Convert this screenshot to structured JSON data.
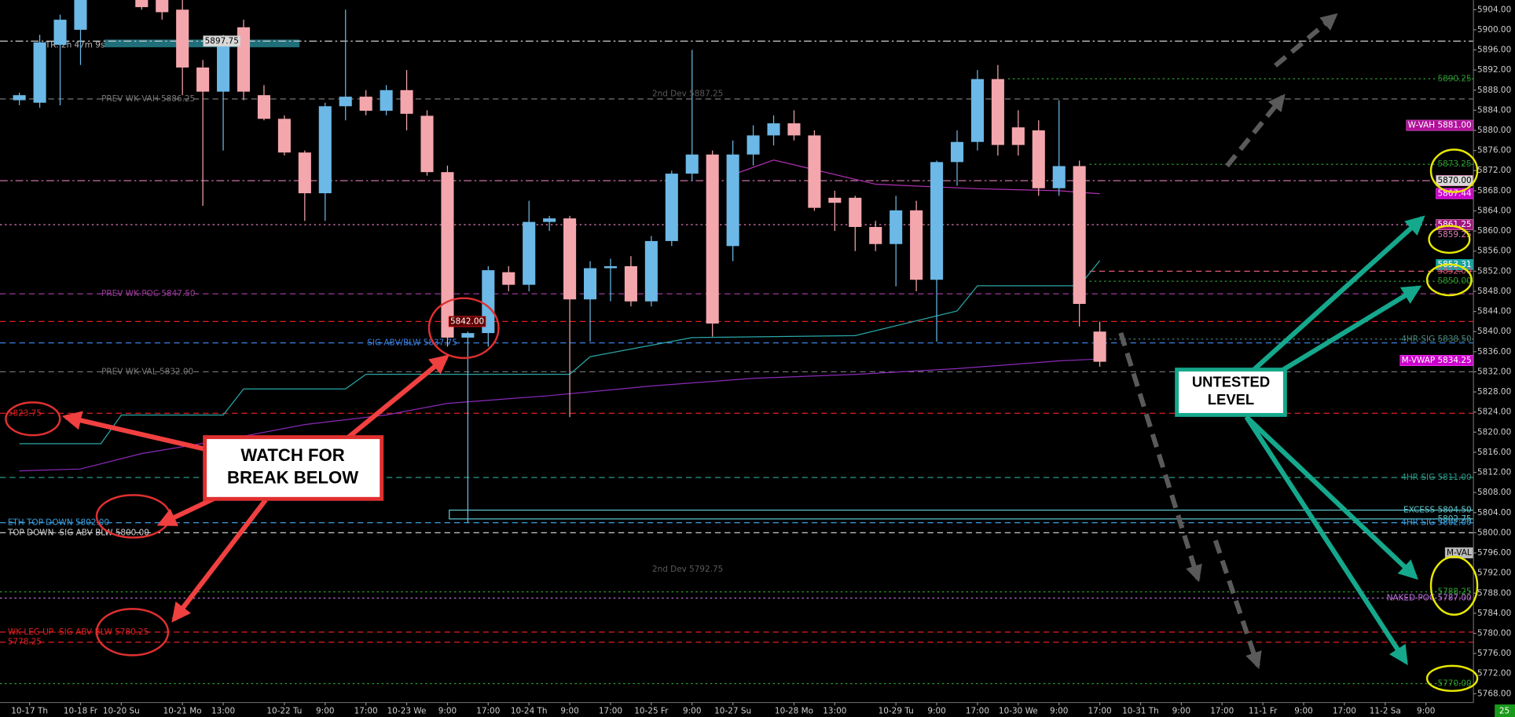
{
  "chart_data": {
    "type": "candlestick",
    "timer_label": "TR: 2h 47m 9s",
    "corner_label": "25",
    "up_color": "#6cb8e6",
    "down_color": "#f4a6ad",
    "xlim": [
      -0.95,
      71.33
    ],
    "ylim": [
      5766.25,
      5905.92
    ],
    "yticks": [
      {
        "value": 5768,
        "label": "5768.00"
      },
      {
        "value": 5772,
        "label": "5772.00"
      },
      {
        "value": 5776,
        "label": "5776.00"
      },
      {
        "value": 5780,
        "label": "5780.00"
      },
      {
        "value": 5784,
        "label": "5784.00"
      },
      {
        "value": 5788,
        "label": "5788.00"
      },
      {
        "value": 5792,
        "label": "5792.00"
      },
      {
        "value": 5796,
        "label": "5796.00"
      },
      {
        "value": 5800,
        "label": "5800.00"
      },
      {
        "value": 5804,
        "label": "5804.00"
      },
      {
        "value": 5808,
        "label": "5808.00"
      },
      {
        "value": 5812,
        "label": "5812.00"
      },
      {
        "value": 5816,
        "label": "5816.00"
      },
      {
        "value": 5820,
        "label": "5820.00"
      },
      {
        "value": 5824,
        "label": "5824.00"
      },
      {
        "value": 5828,
        "label": "5828.00"
      },
      {
        "value": 5832,
        "label": "5832.00"
      },
      {
        "value": 5836,
        "label": "5836.00"
      },
      {
        "value": 5840,
        "label": "5840.00"
      },
      {
        "value": 5844,
        "label": "5844.00"
      },
      {
        "value": 5848,
        "label": "5848.00"
      },
      {
        "value": 5852,
        "label": "5852.00"
      },
      {
        "value": 5856,
        "label": "5856.00"
      },
      {
        "value": 5860,
        "label": "5860.00"
      },
      {
        "value": 5864,
        "label": "5864.00"
      },
      {
        "value": 5868,
        "label": "5868.00"
      },
      {
        "value": 5872,
        "label": "5872.00"
      },
      {
        "value": 5876,
        "label": "5876.00"
      },
      {
        "value": 5880,
        "label": "5880.00"
      },
      {
        "value": 5884,
        "label": "5884.00"
      },
      {
        "value": 5888,
        "label": "5888.00"
      },
      {
        "value": 5892,
        "label": "5892.00"
      },
      {
        "value": 5896,
        "label": "5896.00"
      },
      {
        "value": 5900,
        "label": "5900.00"
      },
      {
        "value": 5904,
        "label": "5904.00"
      }
    ],
    "xticks": [
      {
        "value": 0.5,
        "label": "10-17 Th"
      },
      {
        "value": 3,
        "label": "10-18 Fr"
      },
      {
        "value": 5,
        "label": "10-20 Su"
      },
      {
        "value": 8,
        "label": "10-21 Mo"
      },
      {
        "value": 10,
        "label": "13:00"
      },
      {
        "value": 13,
        "label": "10-22 Tu"
      },
      {
        "value": 15,
        "label": "9:00"
      },
      {
        "value": 17,
        "label": "17:00"
      },
      {
        "value": 19,
        "label": "10-23 We"
      },
      {
        "value": 21,
        "label": "9:00"
      },
      {
        "value": 23,
        "label": "17:00"
      },
      {
        "value": 25,
        "label": "10-24 Th"
      },
      {
        "value": 27,
        "label": "9:00"
      },
      {
        "value": 29,
        "label": "17:00"
      },
      {
        "value": 31,
        "label": "10-25 Fr"
      },
      {
        "value": 33,
        "label": "9:00"
      },
      {
        "value": 35,
        "label": "10-27 Su"
      },
      {
        "value": 38,
        "label": "10-28 Mo"
      },
      {
        "value": 40,
        "label": "13:00"
      },
      {
        "value": 43,
        "label": "10-29 Tu"
      },
      {
        "value": 45,
        "label": "9:00"
      },
      {
        "value": 47,
        "label": "17:00"
      },
      {
        "value": 49,
        "label": "10-30 We"
      },
      {
        "value": 51,
        "label": "9:00"
      },
      {
        "value": 53,
        "label": "17:00"
      },
      {
        "value": 55,
        "label": "10-31 Th"
      },
      {
        "value": 57,
        "label": "9:00"
      },
      {
        "value": 59,
        "label": "17:00"
      },
      {
        "value": 61,
        "label": "11-1 Fr"
      },
      {
        "value": 63,
        "label": "9:00"
      },
      {
        "value": 65,
        "label": "17:00"
      },
      {
        "value": 67,
        "label": "11-2 Sa"
      },
      {
        "value": 69,
        "label": "9:00"
      }
    ],
    "candles": {
      "x": [
        0,
        1,
        2,
        3,
        6,
        7,
        8,
        9,
        10,
        11,
        12,
        13,
        14,
        15,
        16,
        17,
        18,
        19,
        20,
        21,
        22,
        23,
        24,
        25,
        26,
        27,
        28,
        29,
        30,
        31,
        32,
        33,
        34,
        35,
        36,
        37,
        38,
        39,
        40,
        41,
        42,
        43,
        44,
        45,
        46,
        47,
        48,
        49,
        50,
        51,
        52,
        53
      ],
      "open": [
        5886,
        5885.5,
        5897,
        5900,
        5906,
        5906,
        5904,
        5892.5,
        5887.7,
        5900.5,
        5887,
        5882.3,
        5875.6,
        5867.5,
        5884.8,
        5886.7,
        5883.9,
        5888,
        5882.9,
        5871.7,
        5838.8,
        5839.7,
        5851.8,
        5849.3,
        5861.8,
        5862.5,
        5846.4,
        5852.6,
        5853,
        5846,
        5858,
        5871.4,
        5875.2,
        5857,
        5875.2,
        5879,
        5881.4,
        5879,
        5866.6,
        5866.6,
        5860.8,
        5857.4,
        5864.1,
        5850.3,
        5873.7,
        5877.7,
        5890.2,
        5880.6,
        5880,
        5868.5,
        5872.9,
        5840
      ],
      "high": [
        5887.5,
        5899,
        5903,
        5906,
        5906,
        5906,
        5906,
        5894,
        5899,
        5902,
        5889,
        5883,
        5876,
        5885.5,
        5904,
        5888,
        5889,
        5892,
        5884,
        5873,
        5840,
        5853,
        5853,
        5866,
        5863,
        5863,
        5854,
        5854.5,
        5855,
        5859,
        5872,
        5896,
        5876,
        5878,
        5881,
        5883,
        5884,
        5880,
        5868,
        5867,
        5862,
        5867,
        5866,
        5874,
        5880,
        5892,
        5893,
        5884,
        5882,
        5886,
        5874,
        5842
      ],
      "low": [
        5885,
        5884.5,
        5885,
        5893,
        5904,
        5902,
        5887,
        5865,
        5876,
        5886,
        5882,
        5875,
        5862,
        5862,
        5882,
        5883,
        5883,
        5880,
        5871,
        5837,
        5802,
        5837,
        5848,
        5848,
        5860,
        5823,
        5838,
        5846,
        5845,
        5845,
        5857,
        5870,
        5839,
        5854,
        5873,
        5877,
        5878,
        5864,
        5860,
        5856,
        5856,
        5849,
        5848,
        5838,
        5869,
        5876,
        5875,
        5875,
        5867,
        5867,
        5841,
        5833
      ],
      "close": [
        5887,
        5897.5,
        5902,
        5906,
        5904.5,
        5903.5,
        5892.5,
        5887.7,
        5897.3,
        5887.7,
        5882.3,
        5875.6,
        5867.5,
        5884.8,
        5886.7,
        5883.9,
        5888,
        5883.3,
        5871.7,
        5838.8,
        5839.7,
        5852.2,
        5849.3,
        5861.8,
        5862.5,
        5846.4,
        5852.6,
        5853,
        5846,
        5858,
        5871.4,
        5875.2,
        5841.6,
        5875.2,
        5879,
        5881.4,
        5879,
        5864.6,
        5865.6,
        5860.8,
        5857.4,
        5864.1,
        5850.3,
        5873.7,
        5877.7,
        5890.2,
        5877.1,
        5877.1,
        5868.5,
        5872.9,
        5845.5,
        5834
      ]
    },
    "lines": [
      {
        "color": "#2aa8a8",
        "x": [
          0,
          4,
          5,
          10,
          11,
          16,
          17,
          27,
          28,
          33,
          41,
          46,
          47,
          52,
          53
        ],
        "values": [
          5817.7,
          5817.7,
          5823.4,
          5823.4,
          5828.6,
          5828.6,
          5831.5,
          5831.5,
          5835,
          5838.8,
          5839.2,
          5844.1,
          5849.1,
          5849.1,
          5854.1
        ]
      },
      {
        "color": "#8a2ab8",
        "x": [
          0,
          3,
          6,
          10,
          14,
          18,
          21,
          26,
          31,
          36,
          41,
          46,
          51,
          53
        ],
        "values": [
          5812.3,
          5812.68,
          5815.75,
          5818.44,
          5821.51,
          5823.43,
          5825.73,
          5827.26,
          5829.18,
          5830.71,
          5831.48,
          5832.63,
          5834.17,
          5834.55
        ]
      },
      {
        "color": "#b030b0",
        "x": [
          35,
          37,
          39,
          42,
          47,
          51,
          53
        ],
        "values": [
          5871.2,
          5874.1,
          5872.2,
          5869.3,
          5868.4,
          5868,
          5867.4
        ]
      }
    ],
    "levels": [
      {
        "value": 5897.75,
        "color": "#cccccc",
        "style": "dashdot",
        "label": "5897.75",
        "tag": "#d9d9d9"
      },
      {
        "value": 5886.25,
        "color": "#777777",
        "style": "dashed",
        "label": "PREV WK VAH 5886.25"
      },
      {
        "value": 5887.25,
        "color": "#5a5a5a",
        "style": "none",
        "label": "2nd Dev 5887.25"
      },
      {
        "value": 5890.25,
        "color": "#2e9b2e",
        "style": "dotted",
        "start": 48.5,
        "right_label": "5890.25"
      },
      {
        "value": 5881,
        "color": "#e050c8",
        "style": "none",
        "right_label": "W-VAH 5881.00",
        "tag": "#b0109a"
      },
      {
        "value": 5873.25,
        "color": "#2e9b2e",
        "style": "dotted",
        "start": 52.5,
        "right_label": "5873.25"
      },
      {
        "value": 5870,
        "color": "#e07fb8",
        "style": "dashdot",
        "right_label": "5870.00",
        "tag": "#d9d9d9"
      },
      {
        "value": 5867.44,
        "color": "#ff40ff",
        "style": "none",
        "right_label": "5867.44",
        "tag": "#cc00cc"
      },
      {
        "value": 5861.25,
        "color": "#e07fb8",
        "style": "dotted",
        "right_label": "5861.25",
        "tag": "#a0157f"
      },
      {
        "value": 5859.25,
        "color": "#e07fb8",
        "style": "none",
        "right_label": "5859.25"
      },
      {
        "value": 5853.31,
        "color": "#00b0b0",
        "style": "none",
        "right_label": "5853.31",
        "tag": "#1fa0a0"
      },
      {
        "value": 5852,
        "color": "#e05a7a",
        "style": "dashed",
        "start": 52.5,
        "right_label": "5852.00"
      },
      {
        "value": 5850,
        "color": "#2e9b2e",
        "style": "dotted",
        "start": 52.5,
        "right_label": "5850.00"
      },
      {
        "value": 5847.5,
        "color": "#9a3a9a",
        "style": "dashed",
        "label": "PREV WK POC 5847.50"
      },
      {
        "value": 5842,
        "color": "#e02020",
        "style": "dashed",
        "label": "5842.00",
        "tag": "#600000"
      },
      {
        "value": 5837.75,
        "color": "#3a7fe0",
        "style": "dashed",
        "label": "SIG ABV/BLW 5837.75"
      },
      {
        "value": 5838.5,
        "color": "#4a8a80",
        "style": "dotted",
        "start": 53,
        "right_label": "4HR SIG 5838.50"
      },
      {
        "value": 5834.25,
        "color": "#ff40ff",
        "style": "none",
        "right_label": "M-VWAP 5834.25",
        "tag": "#cc00cc"
      },
      {
        "value": 5832,
        "color": "#777777",
        "style": "dashed",
        "label": "PREV WK VAL 5832.00"
      },
      {
        "value": 5823.75,
        "color": "#e02020",
        "style": "dashed",
        "label": "5823.75"
      },
      {
        "value": 5811,
        "color": "#2a9a8a",
        "style": "dashed",
        "right_label": "4HR SIG 5811.00"
      },
      {
        "value": 5804.5,
        "color": "#5fc8d0",
        "style": "none",
        "right_label": "EXCESS 5804.50"
      },
      {
        "value": 5802.75,
        "color": "#5fc8d0",
        "style": "none",
        "right_label": "5802.75"
      },
      {
        "value": 5802,
        "color": "#3a9fe0",
        "style": "dashed",
        "label": "ETH TOP DOWN 5802.00",
        "right_label": "4HR SIG 5802.00"
      },
      {
        "value": 5800,
        "color": "#cccccc",
        "style": "dashed",
        "label": "TOP DOWN- SIG ABV BLW 5800.00"
      },
      {
        "value": 5796,
        "color": "#aaaaaa",
        "style": "none",
        "right_label": "M-VAL",
        "tag": "#bbbbbb"
      },
      {
        "value": 5792.75,
        "color": "#5a5a5a",
        "style": "none",
        "label": "2nd Dev 5792.75"
      },
      {
        "value": 5788.25,
        "color": "#2ea02e",
        "style": "dotted",
        "right_label": "5788.25"
      },
      {
        "value": 5787,
        "color": "#c070e0",
        "style": "dotted",
        "right_label": "NAKED POC 5787.00"
      },
      {
        "value": 5780.25,
        "color": "#e02020",
        "style": "dashed",
        "label": "WK LEG UP- SIG ABV BLW 5780.25"
      },
      {
        "value": 5778.25,
        "color": "#e02020",
        "style": "dashed",
        "label": "5778.25"
      },
      {
        "value": 5770,
        "color": "#2ea02e",
        "style": "dotted",
        "right_label": "5770.00"
      }
    ],
    "annotations": {
      "watch": [
        "WATCH FOR",
        "BREAK BELOW"
      ],
      "untested": [
        "UNTESTED",
        "LEVEL"
      ]
    }
  }
}
